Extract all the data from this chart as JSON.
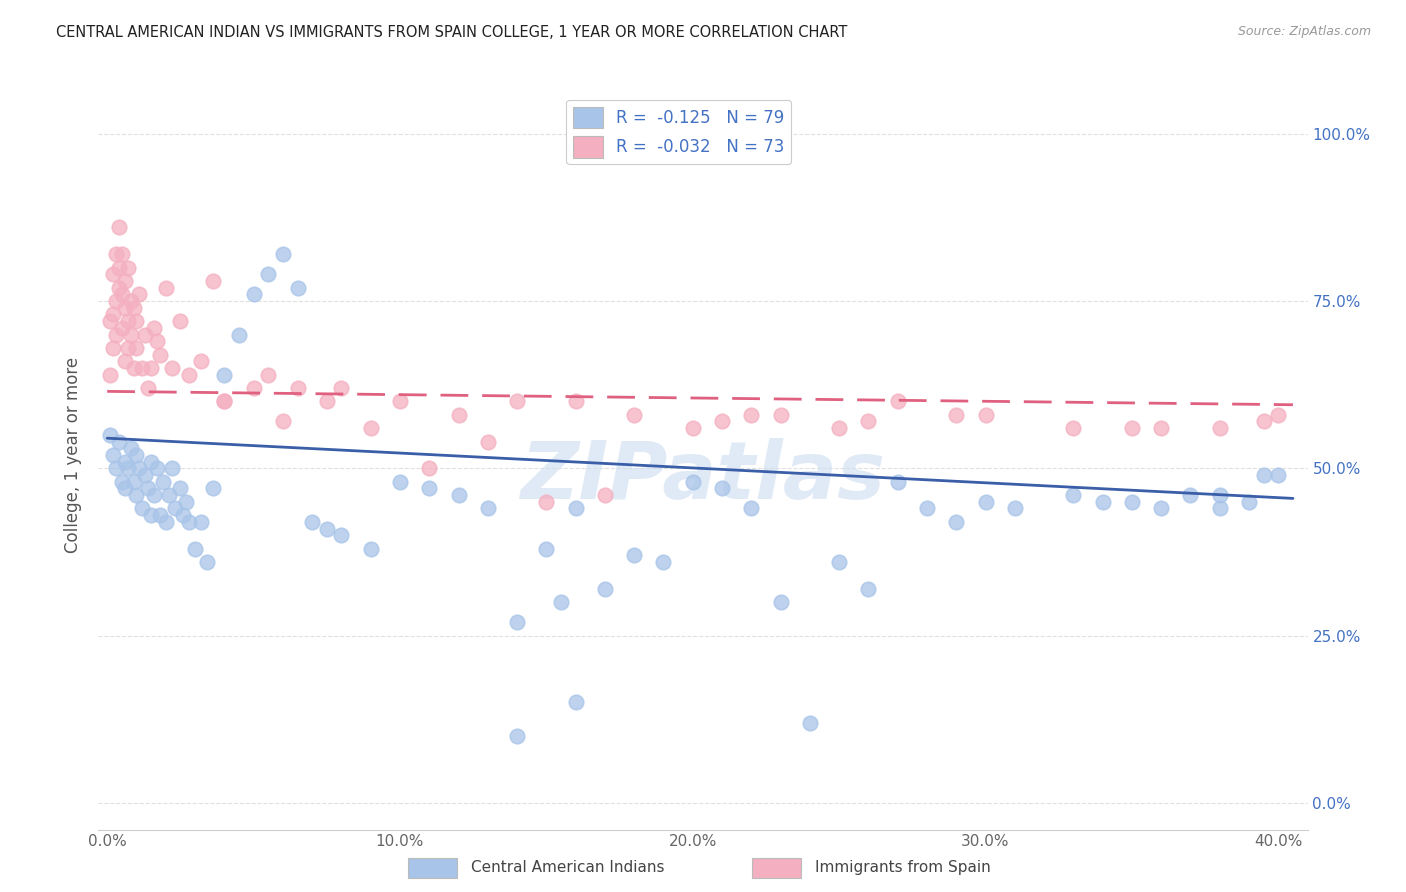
{
  "title": "CENTRAL AMERICAN INDIAN VS IMMIGRANTS FROM SPAIN COLLEGE, 1 YEAR OR MORE CORRELATION CHART",
  "source": "Source: ZipAtlas.com",
  "xlabel_ticks": [
    "0.0%",
    "10.0%",
    "20.0%",
    "30.0%",
    "40.0%"
  ],
  "xlabel_tick_vals": [
    0.0,
    0.1,
    0.2,
    0.3,
    0.4
  ],
  "ylabel_ticks": [
    "100.0%",
    "75.0%",
    "50.0%",
    "25.0%",
    "0.0%"
  ],
  "ylabel_tick_vals": [
    1.0,
    0.75,
    0.5,
    0.25,
    0.0
  ],
  "ylabel": "College, 1 year or more",
  "xlim": [
    -0.003,
    0.41
  ],
  "ylim": [
    -0.04,
    1.08
  ],
  "blue_color": "#a8c4e8",
  "blue_line_color": "#3a5fa8",
  "pink_color": "#f4afc0",
  "pink_line_color": "#e06080",
  "blue_line_x0": 0.0,
  "blue_line_y0": 0.545,
  "blue_line_x1": 0.405,
  "blue_line_y1": 0.455,
  "pink_line_x0": 0.0,
  "pink_line_y0": 0.615,
  "pink_line_x1": 0.405,
  "pink_line_y1": 0.595,
  "background_color": "#ffffff",
  "grid_color": "#dddddd",
  "title_color": "#222222",
  "ylabel_color": "#555555",
  "right_axis_color": "#4472c4",
  "watermark_text": "ZIPatlas",
  "watermark_color": "#ccddf0",
  "legend_label1": "R =  -0.125   N = 79",
  "legend_label2": "R =  -0.032   N = 73",
  "legend_text_color": "#4472c4",
  "bottom_label1": "Central American Indians",
  "bottom_label2": "Immigrants from Spain",
  "blue_x": [
    0.001,
    0.002,
    0.003,
    0.004,
    0.005,
    0.006,
    0.006,
    0.007,
    0.008,
    0.009,
    0.01,
    0.01,
    0.011,
    0.012,
    0.013,
    0.014,
    0.015,
    0.015,
    0.016,
    0.017,
    0.018,
    0.019,
    0.02,
    0.021,
    0.022,
    0.023,
    0.025,
    0.026,
    0.027,
    0.028,
    0.03,
    0.032,
    0.034,
    0.036,
    0.04,
    0.045,
    0.05,
    0.055,
    0.06,
    0.065,
    0.07,
    0.075,
    0.08,
    0.09,
    0.1,
    0.11,
    0.12,
    0.13,
    0.14,
    0.15,
    0.155,
    0.16,
    0.17,
    0.18,
    0.19,
    0.2,
    0.21,
    0.22,
    0.23,
    0.25,
    0.26,
    0.27,
    0.28,
    0.29,
    0.3,
    0.31,
    0.33,
    0.35,
    0.36,
    0.37,
    0.38,
    0.39,
    0.395,
    0.4,
    0.14,
    0.16,
    0.24,
    0.34,
    0.38
  ],
  "blue_y": [
    0.55,
    0.52,
    0.5,
    0.54,
    0.48,
    0.51,
    0.47,
    0.5,
    0.53,
    0.48,
    0.46,
    0.52,
    0.5,
    0.44,
    0.49,
    0.47,
    0.43,
    0.51,
    0.46,
    0.5,
    0.43,
    0.48,
    0.42,
    0.46,
    0.5,
    0.44,
    0.47,
    0.43,
    0.45,
    0.42,
    0.38,
    0.42,
    0.36,
    0.47,
    0.64,
    0.7,
    0.76,
    0.79,
    0.82,
    0.77,
    0.42,
    0.41,
    0.4,
    0.38,
    0.48,
    0.47,
    0.46,
    0.44,
    0.27,
    0.38,
    0.3,
    0.44,
    0.32,
    0.37,
    0.36,
    0.48,
    0.47,
    0.44,
    0.3,
    0.36,
    0.32,
    0.48,
    0.44,
    0.42,
    0.45,
    0.44,
    0.46,
    0.45,
    0.44,
    0.46,
    0.44,
    0.45,
    0.49,
    0.49,
    0.1,
    0.15,
    0.12,
    0.45,
    0.46
  ],
  "pink_x": [
    0.001,
    0.001,
    0.002,
    0.002,
    0.002,
    0.003,
    0.003,
    0.003,
    0.004,
    0.004,
    0.004,
    0.005,
    0.005,
    0.005,
    0.006,
    0.006,
    0.006,
    0.007,
    0.007,
    0.007,
    0.008,
    0.008,
    0.009,
    0.009,
    0.01,
    0.01,
    0.011,
    0.012,
    0.013,
    0.014,
    0.015,
    0.016,
    0.017,
    0.018,
    0.02,
    0.022,
    0.025,
    0.028,
    0.032,
    0.036,
    0.04,
    0.05,
    0.06,
    0.075,
    0.09,
    0.11,
    0.13,
    0.15,
    0.17,
    0.2,
    0.22,
    0.25,
    0.27,
    0.3,
    0.33,
    0.36,
    0.38,
    0.395,
    0.4,
    0.04,
    0.055,
    0.065,
    0.08,
    0.1,
    0.12,
    0.14,
    0.16,
    0.18,
    0.21,
    0.23,
    0.26,
    0.29,
    0.35
  ],
  "pink_y": [
    0.64,
    0.72,
    0.79,
    0.68,
    0.73,
    0.82,
    0.7,
    0.75,
    0.86,
    0.77,
    0.8,
    0.76,
    0.71,
    0.82,
    0.74,
    0.66,
    0.78,
    0.68,
    0.72,
    0.8,
    0.75,
    0.7,
    0.65,
    0.74,
    0.72,
    0.68,
    0.76,
    0.65,
    0.7,
    0.62,
    0.65,
    0.71,
    0.69,
    0.67,
    0.77,
    0.65,
    0.72,
    0.64,
    0.66,
    0.78,
    0.6,
    0.62,
    0.57,
    0.6,
    0.56,
    0.5,
    0.54,
    0.45,
    0.46,
    0.56,
    0.58,
    0.56,
    0.6,
    0.58,
    0.56,
    0.56,
    0.56,
    0.57,
    0.58,
    0.6,
    0.64,
    0.62,
    0.62,
    0.6,
    0.58,
    0.6,
    0.6,
    0.58,
    0.57,
    0.58,
    0.57,
    0.58,
    0.56
  ]
}
